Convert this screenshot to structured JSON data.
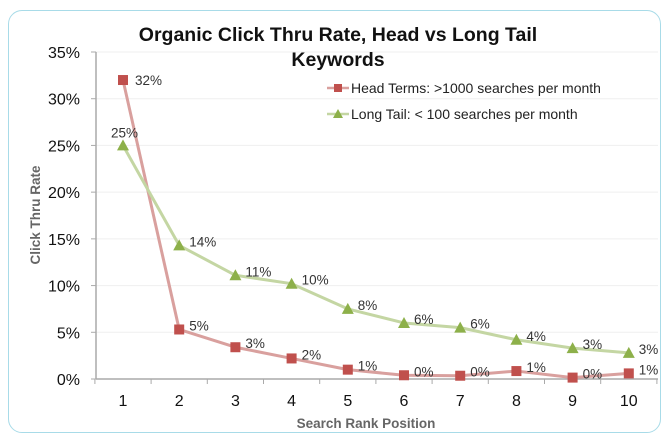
{
  "chart_data": {
    "type": "line",
    "title": "Organic Click Thru Rate, Head vs Long Tail Keywords",
    "title_lines": [
      "Organic Click Thru Rate, Head vs Long Tail",
      "Keywords"
    ],
    "xlabel": "Search Rank Position",
    "ylabel": "Click Thru Rate",
    "x": [
      1,
      2,
      3,
      4,
      5,
      6,
      7,
      8,
      9,
      10
    ],
    "x_tick_labels": [
      "1",
      "2",
      "3",
      "4",
      "5",
      "6",
      "7",
      "8",
      "9",
      "10"
    ],
    "ylim": [
      0,
      35
    ],
    "y_ticks": [
      0,
      5,
      10,
      15,
      20,
      25,
      30,
      35
    ],
    "y_tick_labels": [
      "0%",
      "5%",
      "10%",
      "15%",
      "20%",
      "25%",
      "30%",
      "35%"
    ],
    "grid": "horizontal",
    "legend_position": "top-right",
    "series": [
      {
        "name": "Head Terms: >1000 searches per month",
        "color": "#c0504d",
        "line_color": "#d9a09e",
        "marker": "square",
        "values": [
          32,
          5.3,
          3.4,
          2.2,
          1.0,
          0.4,
          0.35,
          0.85,
          0.15,
          0.6
        ],
        "labels": [
          "32%",
          "5%",
          "3%",
          "2%",
          "1%",
          "0%",
          "0%",
          "1%",
          "0%",
          "1%"
        ]
      },
      {
        "name": "Long Tail: < 100 searches per month",
        "color": "#8db04a",
        "line_color": "#c4d6a3",
        "marker": "triangle",
        "values": [
          25,
          14.3,
          11.1,
          10.2,
          7.5,
          6.0,
          5.5,
          4.2,
          3.3,
          2.8
        ],
        "labels": [
          "25%",
          "14%",
          "11%",
          "10%",
          "8%",
          "6%",
          "6%",
          "4%",
          "3%",
          "3%"
        ]
      }
    ]
  }
}
